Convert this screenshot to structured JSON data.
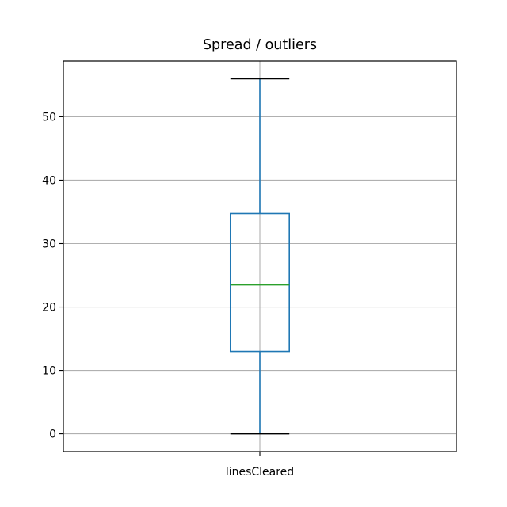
{
  "chart_data": {
    "type": "box",
    "title": "Spread / outliers",
    "xlabel": "",
    "ylabel": "",
    "categories": [
      "linesCleared"
    ],
    "boxes": [
      {
        "name": "linesCleared",
        "whisker_low": 0,
        "q1": 13,
        "median": 23.5,
        "q3": 34.75,
        "whisker_high": 56,
        "outliers": []
      }
    ],
    "ylim": [
      -2.8,
      58.8
    ],
    "yticks": [
      0,
      10,
      20,
      30,
      40,
      50
    ],
    "grid": true,
    "colors": {
      "box": "#1f77b4",
      "median": "#2ca02c",
      "caps": "#000000",
      "grid": "#b0b0b0",
      "frame": "#000000"
    }
  }
}
